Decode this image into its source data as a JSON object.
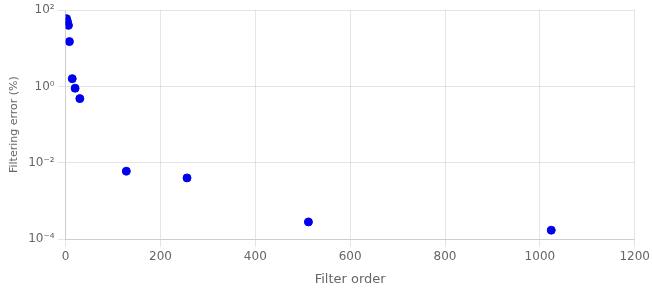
{
  "chart_data": {
    "type": "scatter",
    "x": [
      2,
      4,
      6,
      8,
      14,
      20,
      30,
      128,
      256,
      512,
      1024
    ],
    "values": [
      60,
      50,
      40,
      15,
      1.6,
      0.9,
      0.48,
      0.006,
      0.004,
      0.00028,
      0.00017
    ],
    "color": "#0000EE",
    "xlabel": "Filter order",
    "ylabel": "Filtering error (%)",
    "xlim": [
      0,
      1200
    ],
    "ylim": [
      0.0001,
      100
    ],
    "xticks": [
      0,
      200,
      400,
      600,
      800,
      1000,
      1200
    ],
    "yticks": [
      {
        "value": 0.0001,
        "label": "10⁻⁴"
      },
      {
        "value": 0.01,
        "label": "10⁻²"
      },
      {
        "value": 1,
        "label": "10⁰"
      },
      {
        "value": 100,
        "label": "10²"
      }
    ],
    "log": "y",
    "grid": true
  }
}
